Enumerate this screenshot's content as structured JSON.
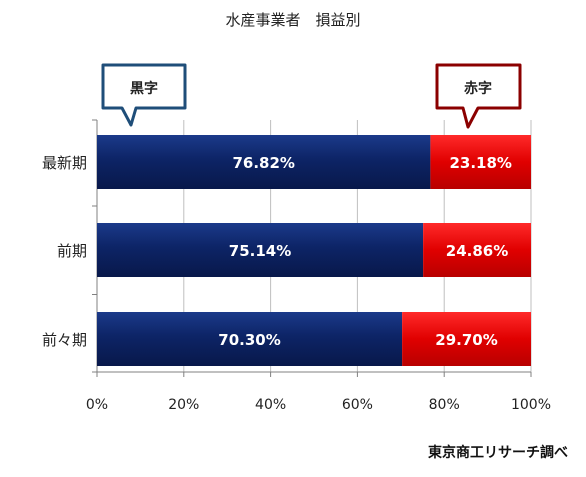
{
  "chart_data": {
    "type": "bar",
    "orientation": "horizontal",
    "stacked": true,
    "title": "水産事業者　損益別",
    "categories": [
      "最新期",
      "前期",
      "前々期"
    ],
    "series": [
      {
        "name": "黒字",
        "values": [
          76.82,
          75.14,
          70.3
        ],
        "labels": [
          "76.82%",
          "75.14%",
          "70.30%"
        ],
        "color": "#0d2466"
      },
      {
        "name": "赤字",
        "values": [
          23.18,
          24.86,
          29.7
        ],
        "labels": [
          "23.18%",
          "24.86%",
          "29.70%"
        ],
        "color": "#e00000"
      }
    ],
    "xlim": [
      0,
      100
    ],
    "xticks": [
      0,
      20,
      40,
      60,
      80,
      100
    ],
    "xtick_labels": [
      "0%",
      "20%",
      "40%",
      "60%",
      "80%",
      "100%"
    ],
    "grid": "vertical",
    "legend": "callouts-top",
    "source": "東京商工リサーチ調べ"
  },
  "colors": {
    "profit_callout_border": "#1f4e79",
    "loss_callout_border": "#8b0000",
    "grid": "#bfbfbf",
    "axis": "#808080"
  }
}
